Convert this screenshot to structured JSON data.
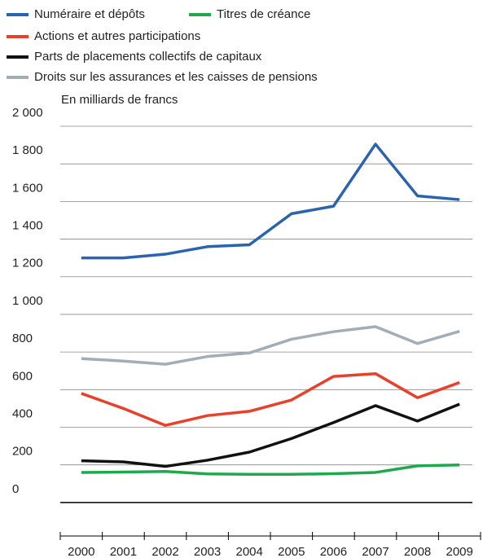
{
  "chart_data": {
    "type": "line",
    "axis_label": "En milliards de francs",
    "categories": [
      "2000",
      "2001",
      "2002",
      "2003",
      "2004",
      "2005",
      "2006",
      "2007",
      "2008",
      "2009"
    ],
    "series": [
      {
        "name": "Numéraire et dépôts",
        "color": "#2a64ae",
        "values": [
          1300,
          1300,
          1320,
          1360,
          1370,
          1535,
          1575,
          1905,
          1630,
          1610
        ]
      },
      {
        "name": "Titres de créance",
        "color": "#1fa84e",
        "values": [
          160,
          162,
          165,
          152,
          150,
          150,
          153,
          160,
          195,
          200
        ]
      },
      {
        "name": "Actions et autres participations",
        "color": "#e8412b",
        "values": [
          580,
          500,
          410,
          462,
          485,
          545,
          670,
          685,
          557,
          638
        ]
      },
      {
        "name": "Parts de placements collectifs de capitaux",
        "color": "#111111",
        "values": [
          222,
          216,
          192,
          225,
          268,
          340,
          425,
          515,
          433,
          523
        ]
      },
      {
        "name": "Droits sur les assurances et les caisses de pensions",
        "color": "#a3adb8",
        "values": [
          765,
          752,
          735,
          776,
          795,
          868,
          908,
          935,
          845,
          910
        ]
      }
    ],
    "ylim": [
      -178,
      2000
    ],
    "yticks": [
      0,
      200,
      400,
      600,
      800,
      {
        "value": 1000,
        "label": "1 000"
      },
      {
        "value": 1200,
        "label": "1 200"
      },
      {
        "value": 1400,
        "label": "1 400"
      },
      {
        "value": 1600,
        "label": "1 600"
      },
      {
        "value": 1800,
        "label": "1 800"
      },
      {
        "value": 2000,
        "label": "2 000"
      }
    ],
    "grid": true
  }
}
